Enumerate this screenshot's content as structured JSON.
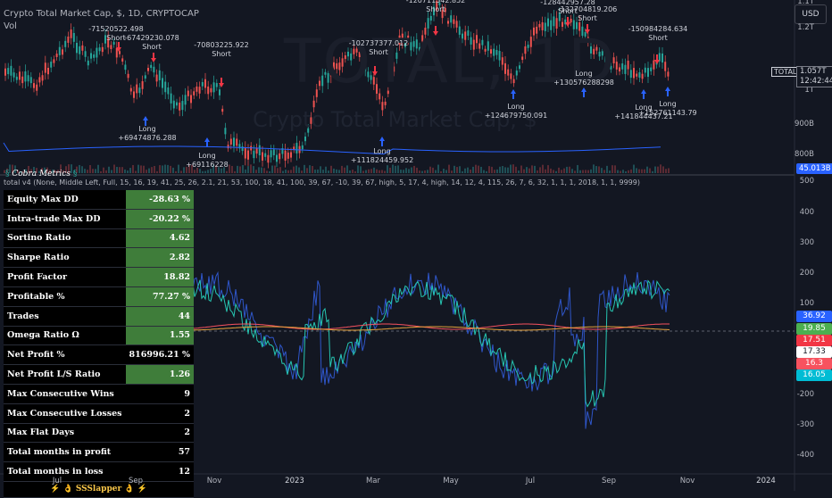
{
  "header": {
    "symbol_line": "Crypto Total Market Cap, $, 1D, CRYPTOCAP",
    "vol_label": "Vol",
    "currency_button": "USD"
  },
  "watermark": {
    "big": "TOTAL, 1D",
    "sub": "Crypto Total Market Cap, $"
  },
  "price_axis": {
    "ticks": [
      "1.2T",
      "1.1T",
      "1T",
      "900B",
      "800B"
    ],
    "symbol_tag": "TOTAL",
    "current_value": "1.057T",
    "countdown": "12:42:44",
    "volume_tag": "45.013B"
  },
  "annotations": [
    {
      "value": "-71520522.498",
      "side": "Short"
    },
    {
      "value": "-67429230.078",
      "side": "Short"
    },
    {
      "value": "-70803225.922",
      "side": "Short"
    },
    {
      "value": "-102737377.012",
      "side": "Short"
    },
    {
      "value": "-120711542.852",
      "side": "Short"
    },
    {
      "value": "-128442957.28",
      "side": "Short"
    },
    {
      "value": "-132704819.206",
      "side": "Short"
    },
    {
      "value": "-150984284.634",
      "side": "Short"
    },
    {
      "value": "+69474876.288",
      "side": "Long"
    },
    {
      "value": "+69116228",
      "side": "Long"
    },
    {
      "value": "+111824459.952",
      "side": "Long"
    },
    {
      "value": "+124679750.091",
      "side": "Long"
    },
    {
      "value": "+130576288298",
      "side": "Long"
    },
    {
      "value": "+141844437.21",
      "side": "Long"
    },
    {
      "value": "+152761143.79",
      "side": "Long"
    }
  ],
  "indicator": {
    "title_line": "total v4 (None, Middle Left, Full, 15, 16, 19, 41, 25, 26, 2.1, 21, 53, 100, 18, 41, 100, 39, 67, -10, 39, 67, high, 5, 17, 4, high, 14, 12, 4, 115, 26, 7, 6, 32, 1, 1, 1, 2018, 1, 1, 9999)",
    "axis_ticks": [
      "500",
      "400",
      "300",
      "200",
      "100",
      "0",
      "-100",
      "-200",
      "-300",
      "-400"
    ],
    "tags": [
      {
        "value": "36.92",
        "color": "#2962ff"
      },
      {
        "value": "19.85",
        "color": "#4caf50"
      },
      {
        "value": "17.51",
        "color": "#f23645"
      },
      {
        "value": "17.33",
        "color": "#ffffff"
      },
      {
        "value": "16.3",
        "color": "#f7525f"
      },
      {
        "value": "16.05",
        "color": "#00bcd4"
      }
    ]
  },
  "metrics": {
    "title": "Cobra Metrics",
    "rows": [
      {
        "label": "Equity Max DD",
        "value": "-28.63 %",
        "state": "pos"
      },
      {
        "label": "Intra-trade Max DD",
        "value": "-20.22 %",
        "state": "pos"
      },
      {
        "label": "Sortino Ratio",
        "value": "4.62",
        "state": "pos"
      },
      {
        "label": "Sharpe Ratio",
        "value": "2.82",
        "state": "pos"
      },
      {
        "label": "Profit Factor",
        "value": "18.82",
        "state": "pos"
      },
      {
        "label": "Profitable %",
        "value": "77.27 %",
        "state": "pos"
      },
      {
        "label": "Trades",
        "value": "44",
        "state": "pos"
      },
      {
        "label": "Omega Ratio Ω",
        "value": "1.55",
        "state": "pos"
      },
      {
        "label": "Net Profit %",
        "value": "816996.21 %",
        "state": "neu"
      },
      {
        "label": "Net Profit L/S Ratio",
        "value": "1.26",
        "state": "pos"
      },
      {
        "label": "Max Consecutive Wins",
        "value": "9",
        "state": "neu"
      },
      {
        "label": "Max Consecutive Losses",
        "value": "2",
        "state": "neu"
      },
      {
        "label": "Max Flat Days",
        "value": "2",
        "state": "neu"
      },
      {
        "label": "Total months in profit",
        "value": "57",
        "state": "neu"
      },
      {
        "label": "Total months in loss",
        "value": "12",
        "state": "neu"
      }
    ],
    "footer": "SSSlapper"
  },
  "time_axis": [
    "Jul",
    "Sep",
    "Nov",
    "2023",
    "Mar",
    "May",
    "Jul",
    "Sep",
    "Nov",
    "2024"
  ]
}
